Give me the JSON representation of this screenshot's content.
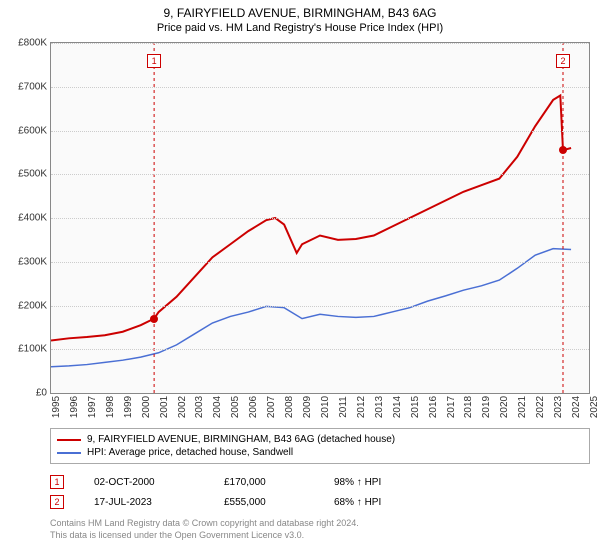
{
  "title": "9, FAIRYFIELD AVENUE, BIRMINGHAM, B43 6AG",
  "subtitle": "Price paid vs. HM Land Registry's House Price Index (HPI)",
  "chart": {
    "type": "line",
    "background_color": "#fafafa",
    "grid_color": "#cccccc",
    "border_color": "#888888",
    "x": {
      "min": 1995,
      "max": 2025,
      "ticks": [
        1995,
        1996,
        1997,
        1998,
        1999,
        2000,
        2001,
        2002,
        2003,
        2004,
        2005,
        2006,
        2007,
        2008,
        2009,
        2010,
        2011,
        2012,
        2013,
        2014,
        2015,
        2016,
        2017,
        2018,
        2019,
        2020,
        2021,
        2022,
        2023,
        2024,
        2025
      ]
    },
    "y": {
      "min": 0,
      "max": 800000,
      "tick_step": 100000,
      "labels": [
        "£0",
        "£100K",
        "£200K",
        "£300K",
        "£400K",
        "£500K",
        "£600K",
        "£700K",
        "£800K"
      ]
    },
    "series": [
      {
        "id": "property",
        "label": "9, FAIRYFIELD AVENUE, BIRMINGHAM, B43 6AG (detached house)",
        "color": "#cc0000",
        "line_width": 2,
        "points": [
          [
            1995,
            120000
          ],
          [
            1996,
            125000
          ],
          [
            1997,
            128000
          ],
          [
            1998,
            132000
          ],
          [
            1999,
            140000
          ],
          [
            2000,
            155000
          ],
          [
            2000.75,
            170000
          ],
          [
            2001,
            185000
          ],
          [
            2002,
            220000
          ],
          [
            2003,
            265000
          ],
          [
            2004,
            310000
          ],
          [
            2005,
            340000
          ],
          [
            2006,
            370000
          ],
          [
            2007,
            395000
          ],
          [
            2007.5,
            400000
          ],
          [
            2008,
            385000
          ],
          [
            2008.7,
            320000
          ],
          [
            2009,
            340000
          ],
          [
            2010,
            360000
          ],
          [
            2011,
            350000
          ],
          [
            2012,
            352000
          ],
          [
            2013,
            360000
          ],
          [
            2014,
            380000
          ],
          [
            2015,
            400000
          ],
          [
            2016,
            420000
          ],
          [
            2017,
            440000
          ],
          [
            2018,
            460000
          ],
          [
            2019,
            475000
          ],
          [
            2020,
            490000
          ],
          [
            2021,
            540000
          ],
          [
            2022,
            610000
          ],
          [
            2023,
            670000
          ],
          [
            2023.4,
            680000
          ],
          [
            2023.55,
            555000
          ],
          [
            2024,
            560000
          ]
        ]
      },
      {
        "id": "hpi",
        "label": "HPI: Average price, detached house, Sandwell",
        "color": "#4a6fd4",
        "line_width": 1.5,
        "points": [
          [
            1995,
            60000
          ],
          [
            1996,
            62000
          ],
          [
            1997,
            65000
          ],
          [
            1998,
            70000
          ],
          [
            1999,
            75000
          ],
          [
            2000,
            82000
          ],
          [
            2001,
            92000
          ],
          [
            2002,
            110000
          ],
          [
            2003,
            135000
          ],
          [
            2004,
            160000
          ],
          [
            2005,
            175000
          ],
          [
            2006,
            185000
          ],
          [
            2007,
            198000
          ],
          [
            2008,
            195000
          ],
          [
            2009,
            170000
          ],
          [
            2010,
            180000
          ],
          [
            2011,
            175000
          ],
          [
            2012,
            173000
          ],
          [
            2013,
            175000
          ],
          [
            2014,
            185000
          ],
          [
            2015,
            195000
          ],
          [
            2016,
            210000
          ],
          [
            2017,
            222000
          ],
          [
            2018,
            235000
          ],
          [
            2019,
            245000
          ],
          [
            2020,
            258000
          ],
          [
            2021,
            285000
          ],
          [
            2022,
            315000
          ],
          [
            2023,
            330000
          ],
          [
            2024,
            328000
          ]
        ]
      }
    ],
    "event_markers": [
      {
        "n": "1",
        "x": 2000.75,
        "y_from": 0,
        "y_to": 800000,
        "dot_y": 170000,
        "dot_color": "#cc0000",
        "box_y": 760000
      },
      {
        "n": "2",
        "x": 2023.55,
        "y_from": 0,
        "y_to": 800000,
        "dot_y": 555000,
        "dot_color": "#cc0000",
        "box_y": 760000
      }
    ]
  },
  "legend": [
    {
      "color": "#cc0000",
      "label_path": "chart.series.0.label"
    },
    {
      "color": "#4a6fd4",
      "label_path": "chart.series.1.label"
    }
  ],
  "events": [
    {
      "n": "1",
      "date": "02-OCT-2000",
      "price": "£170,000",
      "pct": "98% ↑ HPI"
    },
    {
      "n": "2",
      "date": "17-JUL-2023",
      "price": "£555,000",
      "pct": "68% ↑ HPI"
    }
  ],
  "footer_line1": "Contains HM Land Registry data © Crown copyright and database right 2024.",
  "footer_line2": "This data is licensed under the Open Government Licence v3.0."
}
